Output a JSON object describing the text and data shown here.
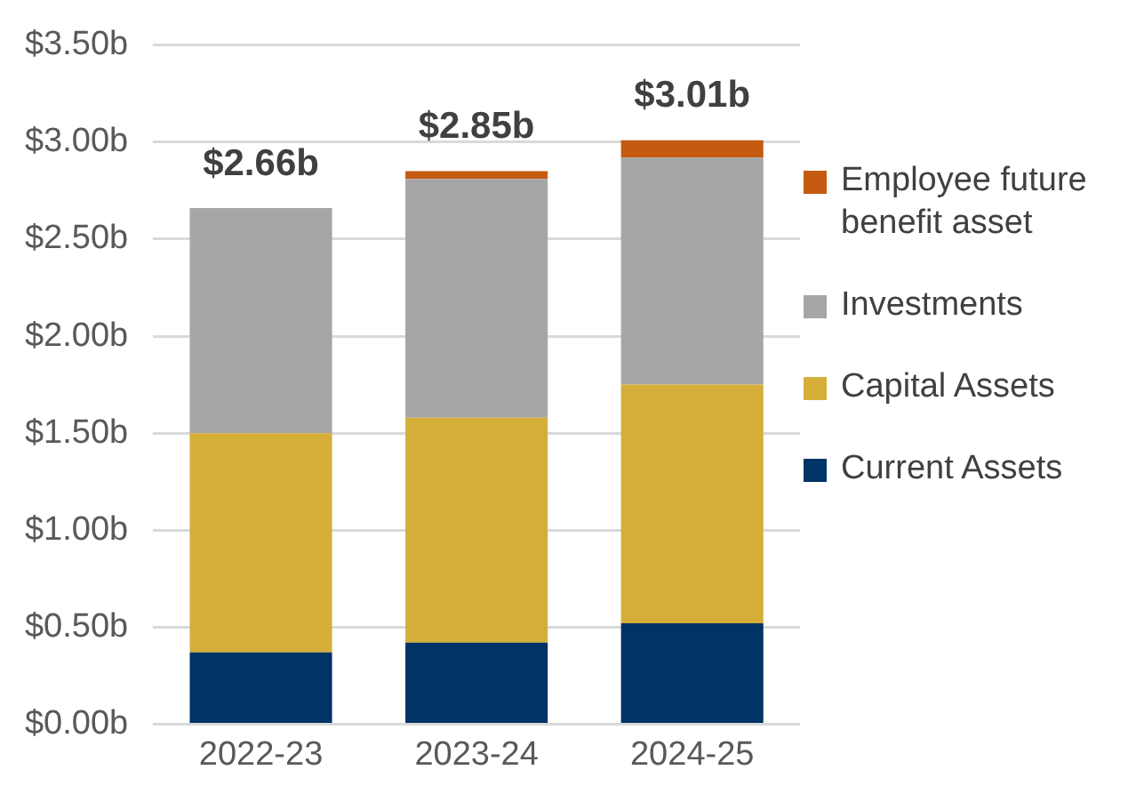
{
  "chart_data": {
    "type": "bar",
    "stacked": true,
    "categories": [
      "2022-23",
      "2023-24",
      "2024-25"
    ],
    "series": [
      {
        "name": "Current Assets",
        "color": "#003366",
        "values": [
          0.37,
          0.42,
          0.52
        ]
      },
      {
        "name": "Capital Assets",
        "color": "#d4ae38",
        "values": [
          1.13,
          1.16,
          1.23
        ]
      },
      {
        "name": "Investments",
        "color": "#a6a6a6",
        "values": [
          1.16,
          1.23,
          1.17
        ]
      },
      {
        "name": "Employee future benefit asset",
        "color": "#c55a11",
        "values": [
          0,
          0.04,
          0.09
        ]
      }
    ],
    "ylim": [
      0,
      3.5
    ],
    "yticks": [
      {
        "value": 0,
        "label": "$0.00b"
      },
      {
        "value": 0.5,
        "label": "$0.50b"
      },
      {
        "value": 1,
        "label": "$1.00b"
      },
      {
        "value": 1.5,
        "label": "$1.50b"
      },
      {
        "value": 2,
        "label": "$2.00b"
      },
      {
        "value": 2.5,
        "label": "$2.50b"
      },
      {
        "value": 3,
        "label": "$3.00b"
      },
      {
        "value": 3.5,
        "label": "$3.50b"
      }
    ],
    "grid": "y",
    "legend": "right",
    "totals": [
      "$2.66b",
      "$2.85b",
      "$3.01b"
    ]
  }
}
